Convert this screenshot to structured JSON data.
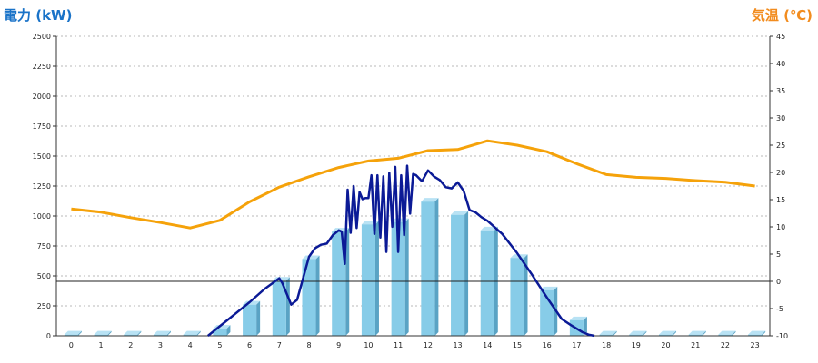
{
  "chart_data": {
    "type": "bar",
    "left_axis_label": "電力 (kW)",
    "right_axis_label": "気温 (℃)",
    "left_ylim": [
      0,
      2500
    ],
    "right_ylim": [
      -10,
      45
    ],
    "left_ticks": [
      "0",
      "250",
      "500",
      "750",
      "1000",
      "1250",
      "1500",
      "1750",
      "2000",
      "2250",
      "2500"
    ],
    "right_ticks": [
      "-10",
      "-5",
      "0",
      "5",
      "10",
      "15",
      "20",
      "25",
      "30",
      "35",
      "40",
      "45"
    ],
    "categories": [
      "0",
      "1",
      "2",
      "3",
      "4",
      "5",
      "6",
      "7",
      "8",
      "9",
      "10",
      "11",
      "12",
      "13",
      "14",
      "15",
      "16",
      "17",
      "18",
      "19",
      "20",
      "21",
      "22",
      "23"
    ],
    "grid": true,
    "colors": {
      "bars": "#87cce8",
      "bars_side": "#5aa3c4",
      "bars_top": "#b8e2f4",
      "power_line": "#0b1a96",
      "temperature_line": "#f5a20a",
      "left_title": "#1a73c8",
      "right_title": "#f28c1e"
    },
    "series": [
      {
        "kind": "bar",
        "axis": "left",
        "values": [
          10,
          10,
          10,
          10,
          10,
          60,
          260,
          460,
          640,
          870,
          930,
          950,
          1120,
          1010,
          880,
          650,
          380,
          130,
          10,
          10,
          10,
          10,
          10,
          10
        ]
      },
      {
        "kind": "line",
        "axis": "left",
        "x": [
          4.6,
          5,
          5.5,
          6,
          6.5,
          7,
          7.1,
          7.2,
          7.4,
          7.6,
          8,
          8.2,
          8.4,
          8.6,
          8.8,
          9,
          9.1,
          9.2,
          9.3,
          9.4,
          9.5,
          9.6,
          9.7,
          9.8,
          9.9,
          10,
          10.1,
          10.2,
          10.3,
          10.4,
          10.5,
          10.6,
          10.7,
          10.8,
          10.9,
          11,
          11.1,
          11.2,
          11.3,
          11.4,
          11.5,
          11.6,
          11.8,
          12,
          12.2,
          12.4,
          12.6,
          12.8,
          13,
          13.2,
          13.4,
          13.6,
          13.8,
          14,
          14.5,
          15,
          15.5,
          16,
          16.5,
          16.8,
          17,
          17.2,
          17.4,
          17.6
        ],
        "values": [
          0,
          80,
          180,
          280,
          390,
          480,
          440,
          380,
          260,
          300,
          660,
          730,
          760,
          770,
          840,
          880,
          870,
          600,
          1220,
          860,
          1250,
          900,
          1200,
          1140,
          1150,
          1150,
          1340,
          850,
          1340,
          820,
          1330,
          700,
          1360,
          910,
          1410,
          700,
          1340,
          840,
          1420,
          1020,
          1350,
          1340,
          1290,
          1380,
          1330,
          1300,
          1240,
          1230,
          1280,
          1210,
          1050,
          1030,
          990,
          960,
          850,
          690,
          510,
          320,
          140,
          90,
          60,
          30,
          10,
          0
        ]
      },
      {
        "kind": "line",
        "axis": "right",
        "values": [
          13.3,
          12.7,
          11.7,
          10.8,
          9.8,
          11.2,
          14.6,
          17.3,
          19.2,
          20.9,
          22.1,
          22.6,
          24.0,
          24.2,
          25.8,
          25.0,
          23.8,
          21.6,
          19.6,
          19.1,
          18.9,
          18.5,
          18.2,
          17.5
        ]
      }
    ]
  }
}
